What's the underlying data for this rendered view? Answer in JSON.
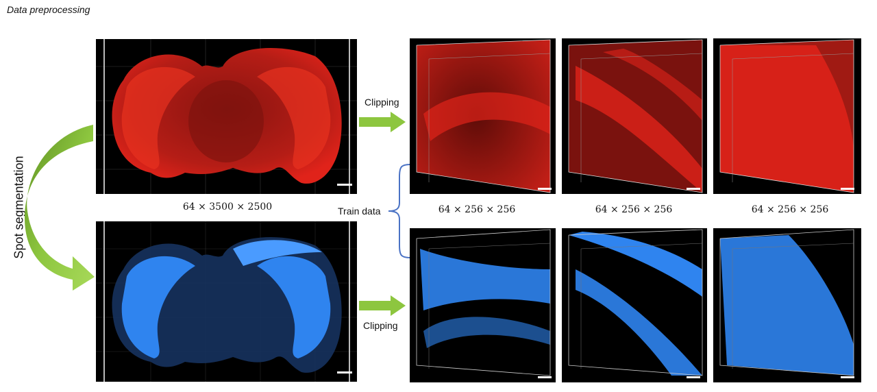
{
  "figure": {
    "title": "Data preprocessing",
    "spot_segmentation_label": "Spot segmentation",
    "clipping_label_top": "Clipping",
    "clipping_label_bottom": "Clipping",
    "train_data_label": "Train data",
    "dims": {
      "full_volume": "64 × 3500 × 2500",
      "crop_1": "64 × 256 × 256",
      "crop_2": "64 × 256 × 256",
      "crop_3": "64 × 256 × 256"
    },
    "colors": {
      "raw_signal": "#e0231a",
      "segmented_signal": "#2f84ef",
      "arrow_green": "#8dc63f",
      "bracket_blue": "#4a72c4",
      "panel_background": "#000000"
    },
    "panels": {
      "full_raw": "red whole-brain coronal volume",
      "full_segmented": "blue segmented whole-brain volume",
      "crops_raw": [
        "red crop 1",
        "red crop 2",
        "red crop 3"
      ],
      "crops_segmented": [
        "blue crop 1",
        "blue crop 2",
        "blue crop 3"
      ]
    }
  }
}
